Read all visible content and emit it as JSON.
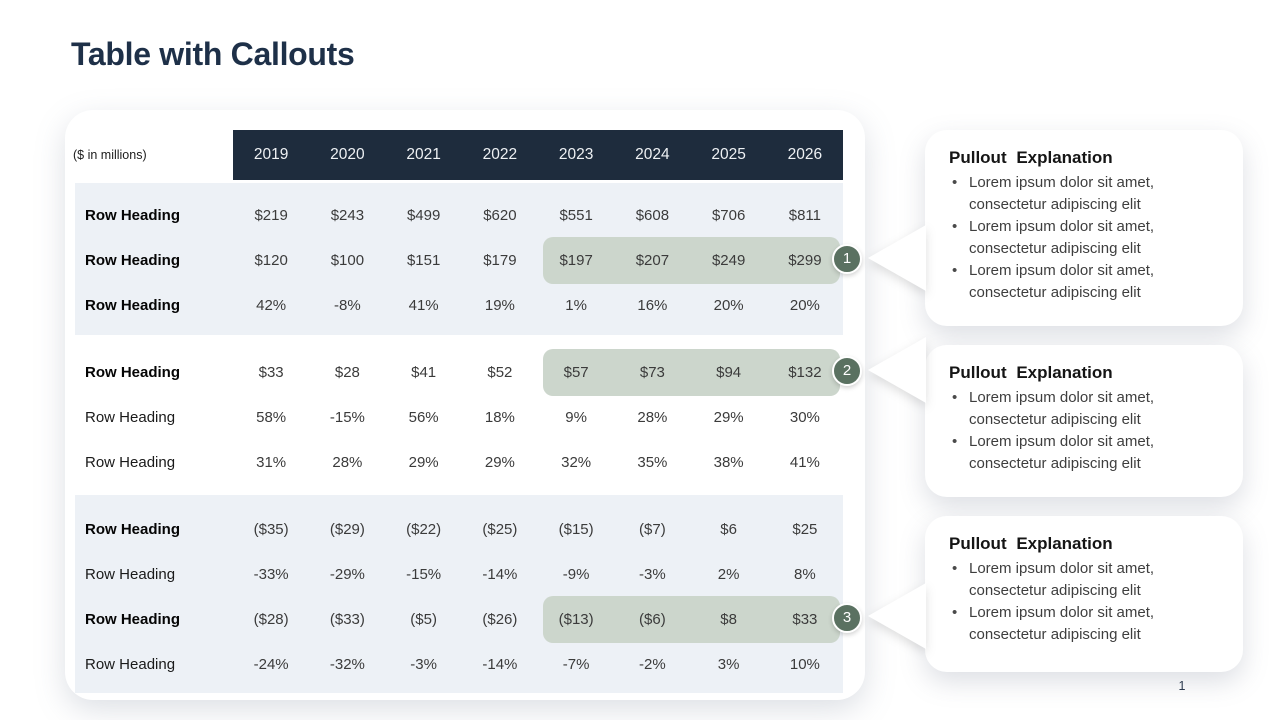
{
  "slide": {
    "title": "Table with Callouts",
    "page_number": "1"
  },
  "table": {
    "unit_label": "($ in millions)",
    "years": [
      "2019",
      "2020",
      "2021",
      "2022",
      "2023",
      "2024",
      "2025",
      "2026"
    ],
    "highlight_columns": [
      "2023",
      "2024",
      "2025",
      "2026"
    ],
    "groups": [
      {
        "banded": true,
        "rows": [
          {
            "label": "Row Heading",
            "bold": true,
            "highlight": false,
            "badge": null,
            "values": [
              "$219",
              "$243",
              "$499",
              "$620",
              "$551",
              "$608",
              "$706",
              "$811"
            ]
          },
          {
            "label": "Row Heading",
            "bold": true,
            "highlight": true,
            "badge": "1",
            "values": [
              "$120",
              "$100",
              "$151",
              "$179",
              "$197",
              "$207",
              "$249",
              "$299"
            ]
          },
          {
            "label": "Row Heading",
            "bold": true,
            "highlight": false,
            "badge": null,
            "values": [
              "42%",
              "-8%",
              "41%",
              "19%",
              "1%",
              "16%",
              "20%",
              "20%"
            ]
          }
        ]
      },
      {
        "banded": false,
        "rows": [
          {
            "label": "Row Heading",
            "bold": true,
            "highlight": true,
            "badge": "2",
            "values": [
              "$33",
              "$28",
              "$41",
              "$52",
              "$57",
              "$73",
              "$94",
              "$132"
            ]
          },
          {
            "label": "Row Heading",
            "bold": false,
            "highlight": false,
            "badge": null,
            "values": [
              "58%",
              "-15%",
              "56%",
              "18%",
              "9%",
              "28%",
              "29%",
              "30%"
            ]
          },
          {
            "label": "Row Heading",
            "bold": false,
            "highlight": false,
            "badge": null,
            "values": [
              "31%",
              "28%",
              "29%",
              "29%",
              "32%",
              "35%",
              "38%",
              "41%"
            ]
          }
        ]
      },
      {
        "banded": true,
        "rows": [
          {
            "label": "Row Heading",
            "bold": true,
            "highlight": false,
            "badge": null,
            "values": [
              "($35)",
              "($29)",
              "($22)",
              "($25)",
              "($15)",
              "($7)",
              "$6",
              "$25"
            ]
          },
          {
            "label": "Row Heading",
            "bold": false,
            "highlight": false,
            "badge": null,
            "values": [
              "-33%",
              "-29%",
              "-15%",
              "-14%",
              "-9%",
              "-3%",
              "2%",
              "8%"
            ]
          },
          {
            "label": "Row Heading",
            "bold": true,
            "highlight": true,
            "badge": "3",
            "values": [
              "($28)",
              "($33)",
              "($5)",
              "($26)",
              "($13)",
              "($6)",
              "$8",
              "$33"
            ]
          },
          {
            "label": "Row Heading",
            "bold": false,
            "highlight": false,
            "badge": null,
            "values": [
              "-24%",
              "-32%",
              "-3%",
              "-14%",
              "-7%",
              "-2%",
              "3%",
              "10%"
            ]
          }
        ]
      }
    ]
  },
  "callouts": [
    {
      "badge": "1",
      "title": "Pullout Explanation",
      "bullets": [
        "Lorem ipsum dolor sit amet, consectetur adipiscing elit",
        "Lorem ipsum dolor sit amet, consectetur adipiscing elit",
        "Lorem ipsum dolor sit amet, consectetur adipiscing elit"
      ]
    },
    {
      "badge": "2",
      "title": "Pullout Explanation",
      "bullets": [
        "Lorem ipsum dolor sit amet, consectetur adipiscing elit",
        "Lorem ipsum dolor sit amet, consectetur adipiscing elit"
      ]
    },
    {
      "badge": "3",
      "title": "Pullout Explanation",
      "bullets": [
        "Lorem ipsum dolor sit amet, consectetur adipiscing elit",
        "Lorem ipsum dolor sit amet, consectetur adipiscing elit"
      ]
    }
  ],
  "colors": {
    "title_color": "#1e3048",
    "header_bg": "#1e2c3d",
    "band_bg": "#edf1f6",
    "highlight_bg": "#ccd6cc",
    "badge_bg": "#5a7161"
  }
}
